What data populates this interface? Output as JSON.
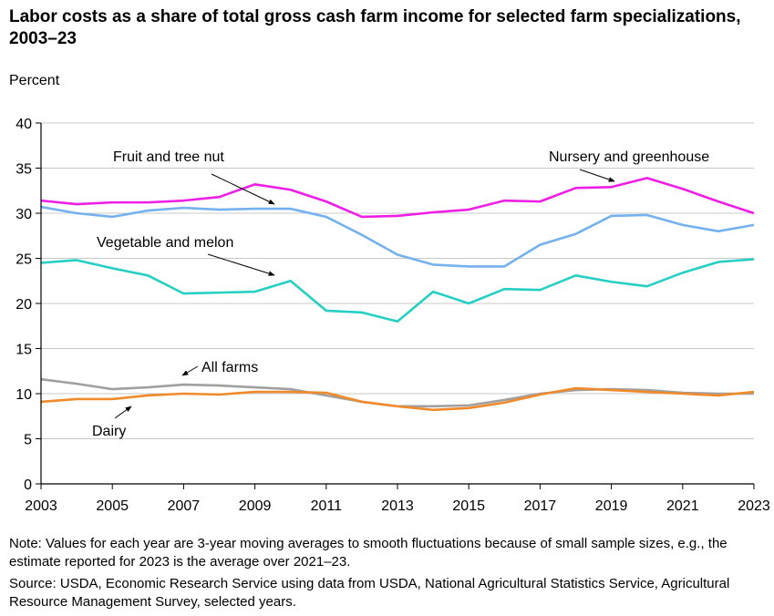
{
  "chart_data": {
    "type": "line",
    "title": "Labor costs as a share of total gross cash farm income for selected farm specializations, 2003–23",
    "ylabel": "Percent",
    "xlabel": "",
    "ylim": [
      0,
      40
    ],
    "yticks": [
      "0",
      "5",
      "10",
      "15",
      "20",
      "25",
      "30",
      "35",
      "40"
    ],
    "xlim": [
      2003,
      2023
    ],
    "xticks": [
      "2003",
      "2005",
      "2007",
      "2009",
      "2011",
      "2013",
      "2015",
      "2017",
      "2019",
      "2021",
      "2023"
    ],
    "grid": "horizontal",
    "x": [
      2003,
      2004,
      2005,
      2006,
      2007,
      2008,
      2009,
      2010,
      2011,
      2012,
      2013,
      2014,
      2015,
      2016,
      2017,
      2018,
      2019,
      2020,
      2021,
      2022,
      2023
    ],
    "series": [
      {
        "name": "Nursery and greenhouse",
        "color": "#ee1ee6",
        "values": [
          31.4,
          31.0,
          31.2,
          31.2,
          31.4,
          31.8,
          33.2,
          32.6,
          31.3,
          29.6,
          29.7,
          30.1,
          30.4,
          31.4,
          31.3,
          32.8,
          32.9,
          33.9,
          32.7,
          31.3,
          30.0
        ]
      },
      {
        "name": "Fruit and tree nut",
        "color": "#74b1ee",
        "values": [
          30.7,
          30.0,
          29.6,
          30.3,
          30.6,
          30.4,
          30.5,
          30.5,
          29.6,
          27.6,
          25.4,
          24.3,
          24.1,
          24.1,
          26.5,
          27.7,
          29.7,
          29.8,
          28.7,
          28.0,
          28.7
        ]
      },
      {
        "name": "Vegetable and melon",
        "color": "#26cfc3",
        "values": [
          24.5,
          24.8,
          23.9,
          23.1,
          21.1,
          21.2,
          21.3,
          22.5,
          19.2,
          19.0,
          18.0,
          21.3,
          20.0,
          21.6,
          21.5,
          23.1,
          22.4,
          21.9,
          23.4,
          24.6,
          24.9
        ]
      },
      {
        "name": "All farms",
        "color": "#a0a0a0",
        "values": [
          11.6,
          11.1,
          10.5,
          10.7,
          11.0,
          10.9,
          10.7,
          10.5,
          9.8,
          9.1,
          8.6,
          8.6,
          8.7,
          9.3,
          10.0,
          10.4,
          10.5,
          10.4,
          10.1,
          10.0,
          10.0
        ]
      },
      {
        "name": "Dairy",
        "color": "#f08a2a",
        "values": [
          9.1,
          9.4,
          9.4,
          9.8,
          10.0,
          9.9,
          10.2,
          10.2,
          10.1,
          9.1,
          8.6,
          8.2,
          8.4,
          9.0,
          9.9,
          10.6,
          10.4,
          10.2,
          10.0,
          9.8,
          10.2
        ]
      }
    ],
    "annotations": [
      {
        "text": "Fruit and tree nut"
      },
      {
        "text": "Nursery and greenhouse"
      },
      {
        "text": "Vegetable and melon"
      },
      {
        "text": "All farms"
      },
      {
        "text": "Dairy"
      }
    ]
  },
  "note": "Note: Values for each year are 3-year moving averages to smooth fluctuations because of small sample sizes, e.g., the estimate reported for 2023 is the average over 2021–23.",
  "source": "Source: USDA, Economic Research Service using data from USDA, National Agricultural Statistics Service, Agricultural Resource Management Survey, selected years."
}
